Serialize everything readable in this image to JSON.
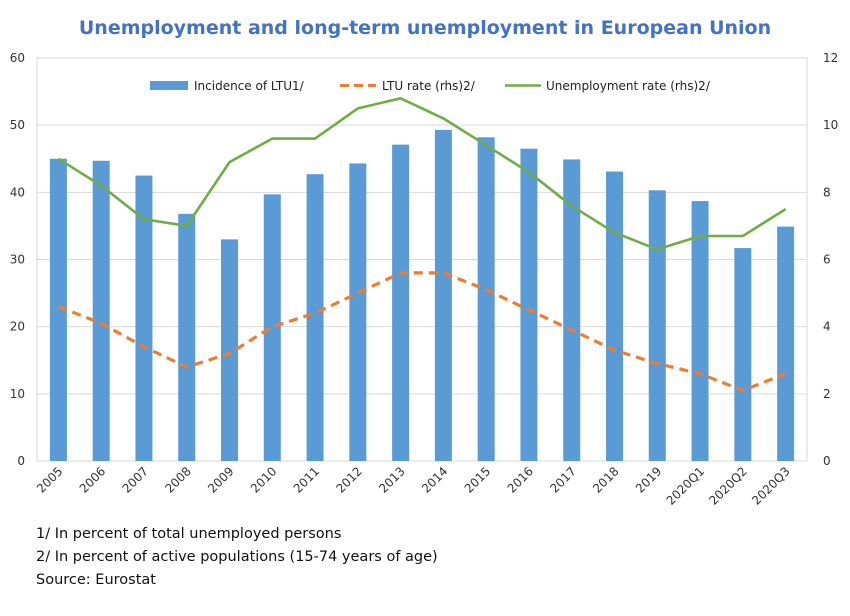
{
  "chart_data": {
    "type": "bar",
    "title": "Unemployment and long-term unemployment in European Union",
    "categories": [
      "2005",
      "2006",
      "2007",
      "2008",
      "2009",
      "2010",
      "2011",
      "2012",
      "2013",
      "2014",
      "2015",
      "2016",
      "2017",
      "2018",
      "2019",
      "2020Q1",
      "2020Q2",
      "2020Q3"
    ],
    "left_axis": {
      "ylim": [
        0,
        60
      ],
      "ticks": [
        "0",
        "10",
        "20",
        "30",
        "40",
        "50",
        "60"
      ]
    },
    "right_axis": {
      "ylim": [
        0,
        12
      ],
      "ticks": [
        "0",
        "2",
        "4",
        "6",
        "8",
        "10",
        "12"
      ]
    },
    "legend_position": "top",
    "grid": true,
    "series": [
      {
        "name": "Incidence of LTU1/",
        "kind": "bar",
        "axis": "left",
        "color": "#5b9bd5",
        "values": [
          45.0,
          44.7,
          42.5,
          36.8,
          33.0,
          39.7,
          42.7,
          44.3,
          47.1,
          49.3,
          48.2,
          46.5,
          44.9,
          43.1,
          40.3,
          38.7,
          31.7,
          34.9
        ]
      },
      {
        "name": "LTU rate (rhs)2/",
        "kind": "line-dashed",
        "axis": "right",
        "color": "#ed7d31",
        "values": [
          4.6,
          4.1,
          3.4,
          2.8,
          3.2,
          4.0,
          4.4,
          5.0,
          5.6,
          5.6,
          5.1,
          4.5,
          3.9,
          3.3,
          2.9,
          2.6,
          2.1,
          2.6
        ]
      },
      {
        "name": "Unemployment rate (rhs)2/",
        "kind": "line",
        "axis": "right",
        "color": "#70ad47",
        "values": [
          9.0,
          8.2,
          7.2,
          7.0,
          8.9,
          9.6,
          9.6,
          10.5,
          10.8,
          10.2,
          9.4,
          8.6,
          7.6,
          6.8,
          6.3,
          6.7,
          6.7,
          7.5
        ]
      }
    ]
  },
  "notes": [
    "1/ In percent of total unemployed persons",
    "2/ In percent of active populations (15-74 years of age)",
    "Source: Eurostat"
  ]
}
